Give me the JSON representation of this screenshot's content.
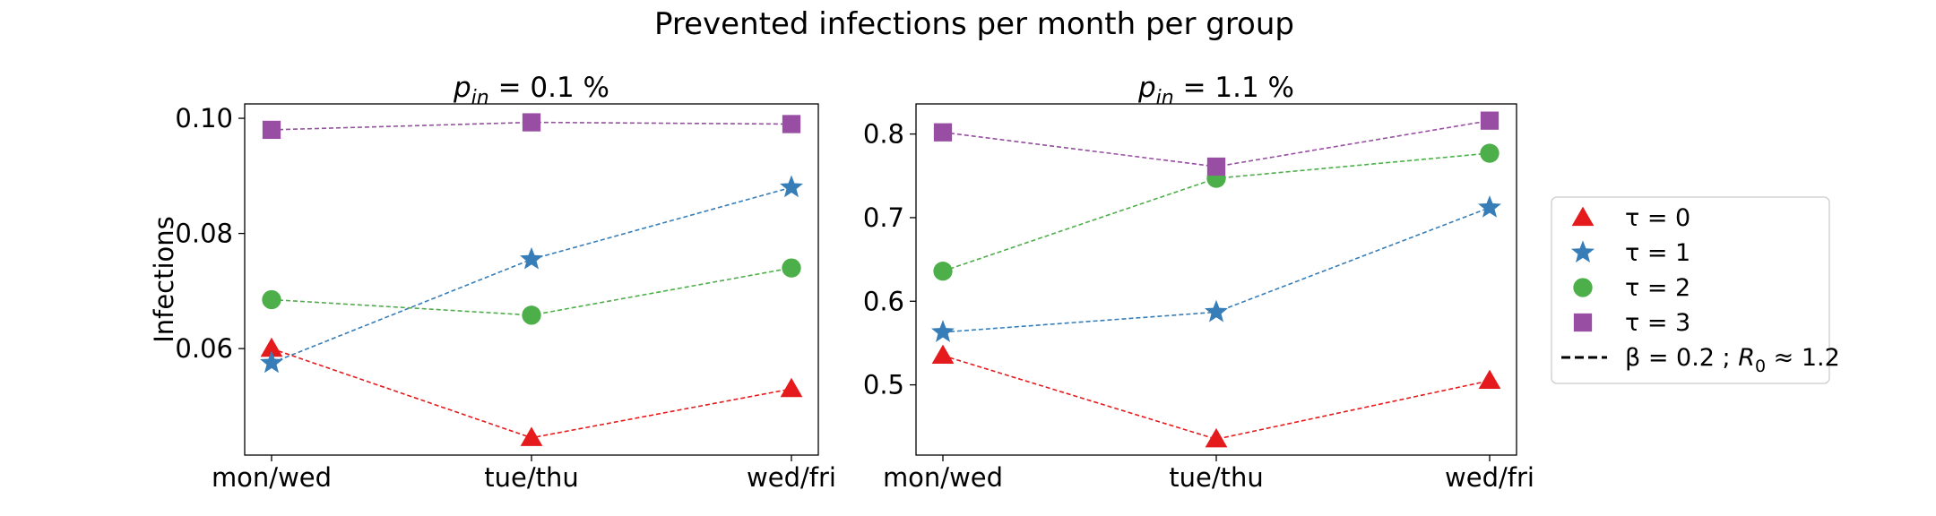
{
  "figure": {
    "title": "Prevented infections per month per group"
  },
  "legend": {
    "placement": "right",
    "entries": [
      {
        "label": "τ = 0",
        "marker": "triangle",
        "color": "#e41a1c"
      },
      {
        "label": "τ = 1",
        "marker": "star",
        "color": "#377eb8"
      },
      {
        "label": "τ = 2",
        "marker": "circle",
        "color": "#4daf4a"
      },
      {
        "label": "τ = 3",
        "marker": "square",
        "color": "#984ea3"
      }
    ],
    "style_entry": {
      "beta": "β = 0.2 ;",
      "r0": "R",
      "r0_sub": "0",
      "r0_val": " ≈ 1.2",
      "linestyle": "dashed"
    }
  },
  "chart_data": [
    {
      "type": "line",
      "title_var": "p",
      "title_sub": "in",
      "title_rest": " = 0.1 %",
      "ylabel": "Infections",
      "categories": [
        "mon/wed",
        "tue/thu",
        "wed/fri"
      ],
      "ylim": [
        0.0415,
        0.1025
      ],
      "yticks": [
        0.06,
        0.08,
        0.1
      ],
      "ytick_labels": [
        "0.06",
        "0.08",
        "0.10"
      ],
      "grid": false,
      "series": [
        {
          "name": "τ = 0",
          "marker": "triangle",
          "color": "#e41a1c",
          "values": [
            0.06,
            0.0445,
            0.053
          ]
        },
        {
          "name": "τ = 1",
          "marker": "star",
          "color": "#377eb8",
          "values": [
            0.0575,
            0.0755,
            0.088
          ]
        },
        {
          "name": "τ = 2",
          "marker": "circle",
          "color": "#4daf4a",
          "values": [
            0.0685,
            0.0658,
            0.074
          ]
        },
        {
          "name": "τ = 3",
          "marker": "square",
          "color": "#984ea3",
          "values": [
            0.098,
            0.0993,
            0.099
          ]
        }
      ]
    },
    {
      "type": "line",
      "title_var": "p",
      "title_sub": "in",
      "title_rest": " = 1.1 %",
      "ylabel": "",
      "categories": [
        "mon/wed",
        "tue/thu",
        "wed/fri"
      ],
      "ylim": [
        0.416,
        0.836
      ],
      "yticks": [
        0.5,
        0.6,
        0.7,
        0.8
      ],
      "ytick_labels": [
        "0.5",
        "0.6",
        "0.7",
        "0.8"
      ],
      "grid": false,
      "series": [
        {
          "name": "τ = 0",
          "marker": "triangle",
          "color": "#e41a1c",
          "values": [
            0.535,
            0.435,
            0.505
          ]
        },
        {
          "name": "τ = 1",
          "marker": "star",
          "color": "#377eb8",
          "values": [
            0.563,
            0.587,
            0.712
          ]
        },
        {
          "name": "τ = 2",
          "marker": "circle",
          "color": "#4daf4a",
          "values": [
            0.636,
            0.747,
            0.777
          ]
        },
        {
          "name": "τ = 3",
          "marker": "square",
          "color": "#984ea3",
          "values": [
            0.802,
            0.761,
            0.816
          ]
        }
      ]
    }
  ]
}
